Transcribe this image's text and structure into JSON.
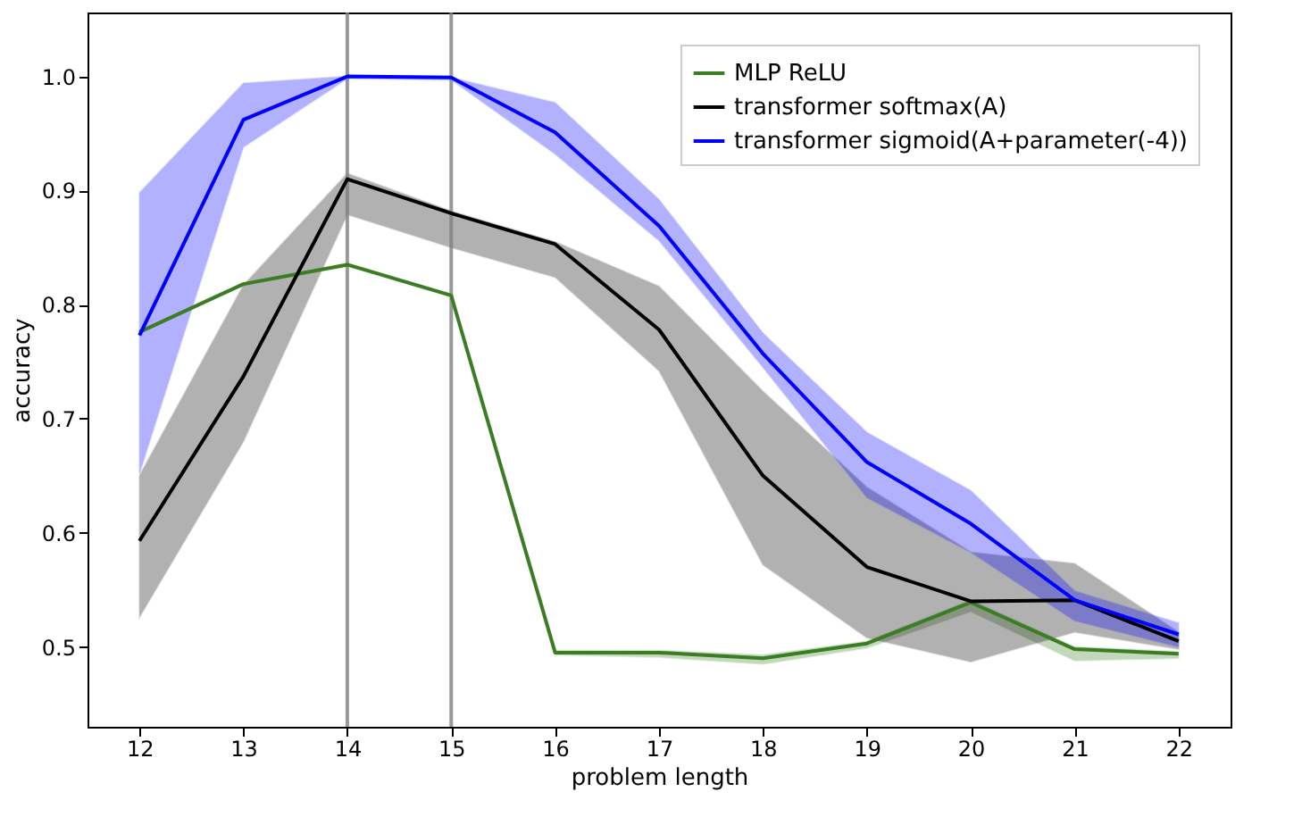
{
  "chart_data": {
    "type": "line",
    "xlabel": "problem length",
    "ylabel": "accuracy",
    "x": [
      12,
      13,
      14,
      15,
      16,
      17,
      18,
      19,
      20,
      21,
      22
    ],
    "xlim": [
      11.5,
      22.5
    ],
    "xticks": [
      12,
      13,
      14,
      15,
      16,
      17,
      18,
      19,
      20,
      21,
      22
    ],
    "ylim": [
      0.43,
      1.056
    ],
    "yticks": [
      0.5,
      0.6,
      0.7,
      0.8,
      0.9,
      {
        "value": 1,
        "label": "1.0"
      }
    ],
    "grid": false,
    "legend": "top right",
    "marker": "none",
    "line_style": "solid",
    "series": [
      {
        "name": "MLP ReLU",
        "color": "#3b7d23",
        "values": [
          0.776,
          0.818,
          0.835,
          0.808,
          0.495,
          0.495,
          0.49,
          0.503,
          0.539,
          0.498,
          0.494
        ],
        "lower": [
          0.775,
          0.817,
          0.834,
          0.807,
          0.493,
          0.491,
          0.485,
          0.499,
          0.531,
          0.488,
          0.49
        ],
        "upper": [
          0.777,
          0.819,
          0.836,
          0.809,
          0.497,
          0.497,
          0.493,
          0.505,
          0.541,
          0.5,
          0.496
        ]
      },
      {
        "name": "transformer softmax(A)",
        "color": "#000000",
        "values": [
          0.593,
          0.737,
          0.91,
          0.88,
          0.853,
          0.778,
          0.65,
          0.57,
          0.54,
          0.541,
          0.505
        ],
        "lower": [
          0.526,
          0.68,
          0.879,
          0.85,
          0.824,
          0.742,
          0.572,
          0.508,
          0.487,
          0.513,
          0.498
        ],
        "upper": [
          0.65,
          0.817,
          0.915,
          0.882,
          0.855,
          0.816,
          0.724,
          0.64,
          0.583,
          0.573,
          0.513
        ]
      },
      {
        "name": "transformer sigmoid(A+parameter(-4))",
        "color": "#0000ff",
        "values": [
          0.773,
          0.962,
          1.0,
          0.999,
          0.951,
          0.869,
          0.757,
          0.662,
          0.608,
          0.541,
          0.511
        ],
        "lower": [
          0.652,
          0.938,
          0.998,
          0.997,
          0.932,
          0.856,
          0.745,
          0.631,
          0.583,
          0.523,
          0.5
        ],
        "upper": [
          0.898,
          0.994,
          1.0,
          0.999,
          0.977,
          0.892,
          0.775,
          0.688,
          0.637,
          0.549,
          0.521
        ]
      }
    ],
    "ref_lines": [
      {
        "axis": "x",
        "value": 14,
        "color": "#808080"
      },
      {
        "axis": "x",
        "value": 15,
        "color": "#808080"
      }
    ]
  }
}
